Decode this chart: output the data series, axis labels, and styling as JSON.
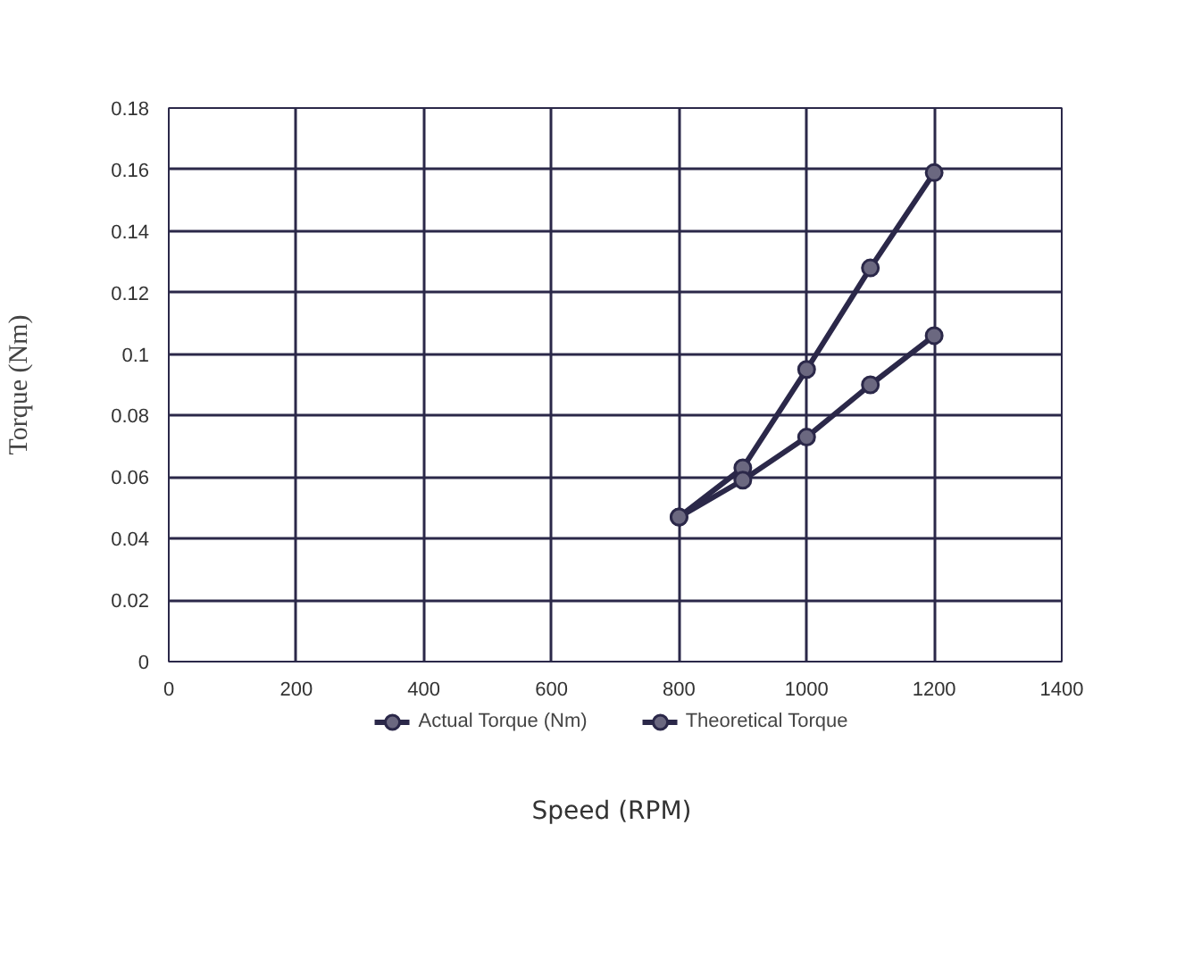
{
  "chart_data": {
    "type": "line",
    "xlabel": "Speed (RPM)",
    "ylabel": "Torque (Nm)",
    "x": [
      800,
      900,
      1000,
      1100,
      1200
    ],
    "series": [
      {
        "name": "Actual Torque (Nm)",
        "color": "#2b2849",
        "values": [
          0.047,
          0.063,
          0.095,
          0.128,
          0.159
        ]
      },
      {
        "name": "Theoretical Torque",
        "color": "#2b2849",
        "values": [
          0.047,
          0.059,
          0.073,
          0.09,
          0.106
        ]
      }
    ],
    "xlim": [
      0,
      1400
    ],
    "xticks": [
      0,
      200,
      400,
      600,
      800,
      1000,
      1200,
      1400
    ],
    "ylim": [
      0,
      0.18
    ],
    "yticks": [
      0,
      0.02,
      0.04,
      0.06,
      0.08,
      {
        "value": 0.1,
        "label": "0.1"
      },
      0.12,
      0.14,
      0.16,
      0.18
    ],
    "grid": true,
    "legend": "bottom",
    "marker": "circle",
    "line_style": "solid"
  }
}
